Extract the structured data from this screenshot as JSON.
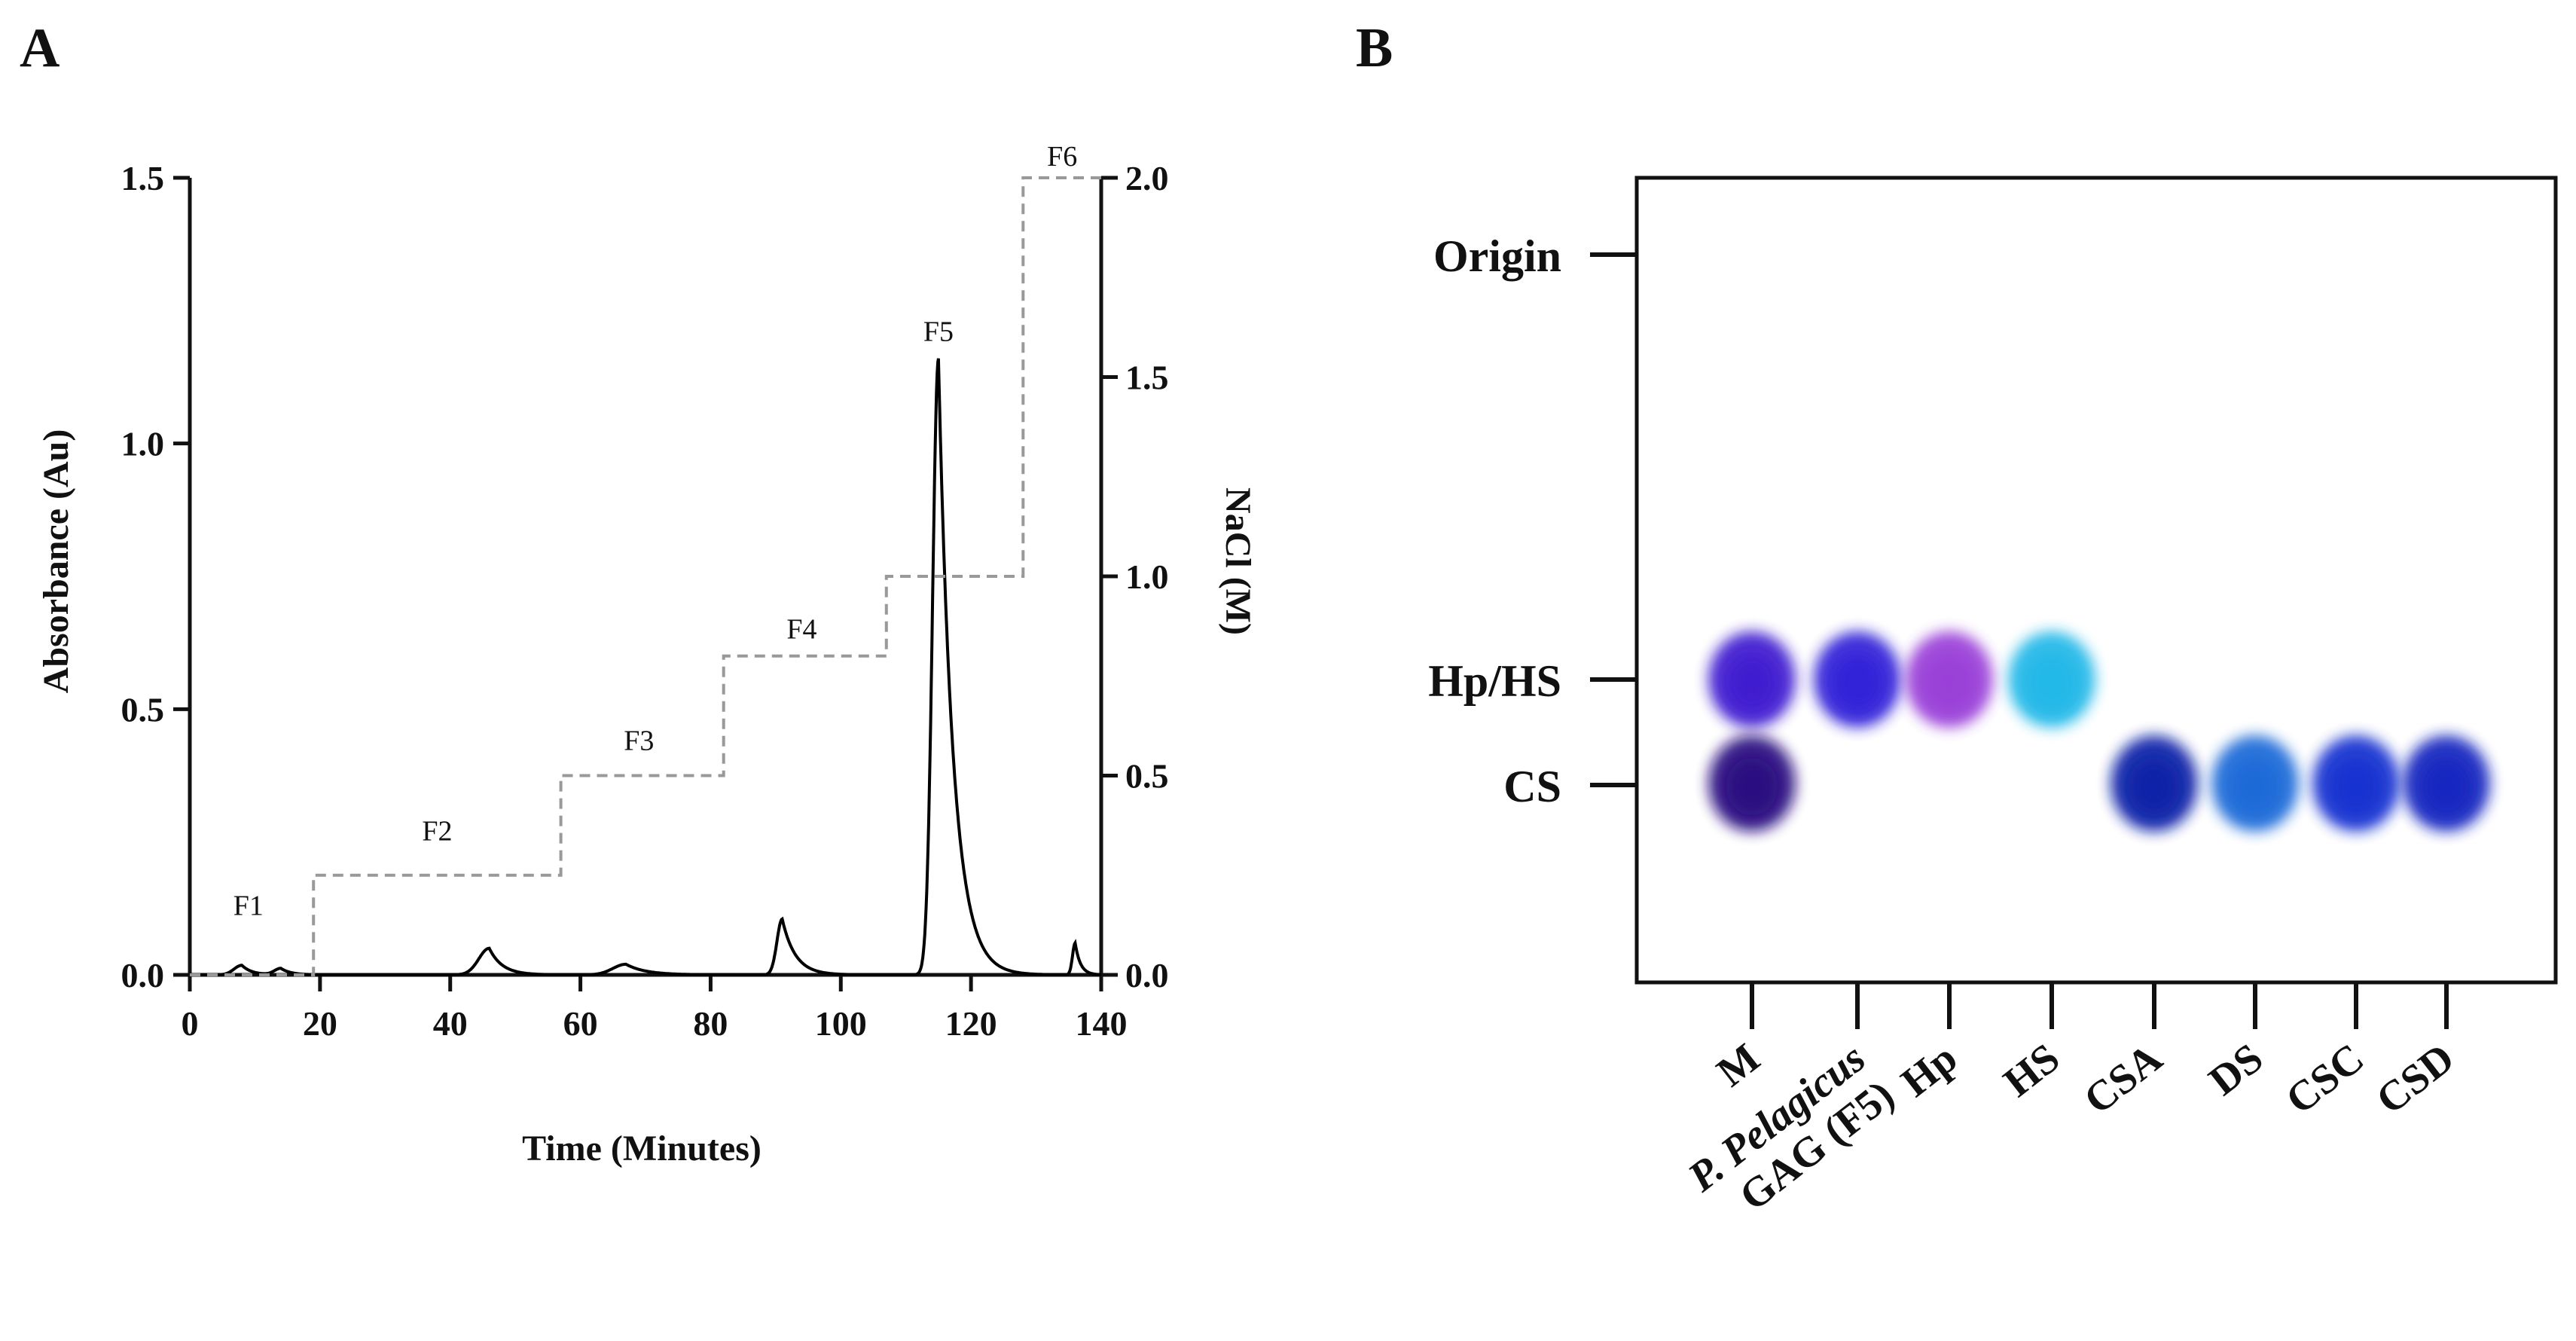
{
  "panels": {
    "a_letter": "A",
    "b_letter": "B"
  },
  "chart_data": [
    {
      "type": "line",
      "panel": "A",
      "xlabel": "Time (Minutes)",
      "ylabel": "Absorbance (Au)",
      "y2label": "NaCl (M)",
      "xlim": [
        0,
        140
      ],
      "ylim": [
        0,
        1.5
      ],
      "y2lim": [
        0,
        2.0
      ],
      "x_ticks": [
        "0",
        "20",
        "40",
        "60",
        "80",
        "100",
        "120",
        "140"
      ],
      "y_ticks": [
        "0.0",
        "0.5",
        "1.0",
        "1.5"
      ],
      "y2_ticks": [
        "0.0",
        "0.5",
        "1.0",
        "1.5",
        "2.0"
      ],
      "series": [
        {
          "name": "Absorbance",
          "axis": "left",
          "style": "solid",
          "color": "#000000",
          "baseline": 0.0,
          "peaks": [
            {
              "center": 8,
              "height": 0.018,
              "width": 1.2,
              "tail": 1.5
            },
            {
              "center": 14,
              "height": 0.012,
              "width": 1.0,
              "tail": 1.5
            },
            {
              "center": 46,
              "height": 0.05,
              "width": 1.6,
              "tail": 2.0
            },
            {
              "center": 67,
              "height": 0.02,
              "width": 2.0,
              "tail": 3.0
            },
            {
              "center": 91,
              "height": 0.105,
              "width": 0.8,
              "tail": 2.0
            },
            {
              "center": 115,
              "height": 1.16,
              "width": 0.9,
              "tail": 2.2
            },
            {
              "center": 136,
              "height": 0.06,
              "width": 0.4,
              "tail": 0.8
            }
          ]
        },
        {
          "name": "NaCl gradient",
          "axis": "right",
          "style": "dashed",
          "color": "#999999",
          "steps": [
            {
              "x_start": 0,
              "x_end": 19,
              "value": 0.0
            },
            {
              "x_start": 19,
              "x_end": 57,
              "value": 0.25
            },
            {
              "x_start": 57,
              "x_end": 82,
              "value": 0.5
            },
            {
              "x_start": 82,
              "x_end": 107,
              "value": 0.8
            },
            {
              "x_start": 107,
              "x_end": 128,
              "value": 1.0
            },
            {
              "x_start": 128,
              "x_end": 140,
              "value": 2.0
            }
          ]
        }
      ],
      "annotations": [
        {
          "text": "F1",
          "x": 9,
          "y_abs": 0.13
        },
        {
          "text": "F2",
          "x": 38,
          "y_abs": 0.27
        },
        {
          "text": "F3",
          "x": 69,
          "y_abs": 0.44
        },
        {
          "text": "F4",
          "x": 94,
          "y_abs": 0.65
        },
        {
          "text": "F5",
          "x": 115,
          "y_abs": 1.21
        },
        {
          "text": "F6",
          "x": 134,
          "y_abs": 1.54
        }
      ]
    },
    {
      "type": "gel",
      "panel": "B",
      "row_labels": [
        "Origin",
        "Hp/HS",
        "CS"
      ],
      "lanes": [
        "M",
        "P. Pelagicus GAG (F5)",
        "Hp",
        "HS",
        "CSA",
        "DS",
        "CSC",
        "CSD"
      ],
      "lane_label_lines": [
        [
          "M"
        ],
        [
          "P. Pelagicus",
          "GAG (F5)"
        ],
        [
          "Hp"
        ],
        [
          "HS"
        ],
        [
          "CSA"
        ],
        [
          "DS"
        ],
        [
          "CSC"
        ],
        [
          "CSD"
        ]
      ],
      "bands": [
        {
          "lane": "M",
          "position": "Hp/HS",
          "color": "#3f1fd0"
        },
        {
          "lane": "M",
          "position": "CS",
          "color": "#2a0a80"
        },
        {
          "lane": "P. Pelagicus GAG (F5)",
          "position": "Hp/HS",
          "color": "#3020d8"
        },
        {
          "lane": "Hp",
          "position": "Hp/HS",
          "color": "#9a40d8"
        },
        {
          "lane": "HS",
          "position": "Hp/HS",
          "color": "#20b8e8"
        },
        {
          "lane": "CSA",
          "position": "CS",
          "color": "#1020a8"
        },
        {
          "lane": "DS",
          "position": "CS",
          "color": "#1a6ad8"
        },
        {
          "lane": "CSC",
          "position": "CS",
          "color": "#1430d0"
        },
        {
          "lane": "CSD",
          "position": "CS",
          "color": "#1228c0"
        }
      ]
    }
  ]
}
